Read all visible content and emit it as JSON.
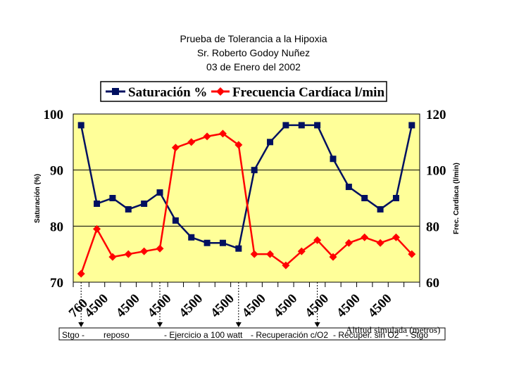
{
  "chart_data": {
    "type": "line",
    "title": [
      "Prueba de Tolerancia a la Hipoxia",
      "Sr. Roberto Godoy Nuñez",
      "03 de Enero del 2002"
    ],
    "xlabel": "Altitud simulada (metros)",
    "ylabel": "Saturación (%)",
    "y2label": "Frec. Cardíaca (l/min)",
    "ylim": [
      70,
      100
    ],
    "y2lim": [
      60,
      120
    ],
    "yticks": [
      "70",
      "80",
      "90",
      "100"
    ],
    "y2ticks": [
      "60",
      "80",
      "100",
      "120"
    ],
    "x_tick_labels": [
      "760",
      "4500",
      "4500",
      "4500",
      "4500",
      "4500",
      "4500",
      "4500",
      "4500",
      "4500",
      "4500"
    ],
    "grid": true,
    "legend_position": "top",
    "series": [
      {
        "name": "Saturación %",
        "axis": "left",
        "color": "#001060",
        "marker": "square",
        "values": [
          98,
          84,
          85,
          83,
          84,
          86,
          81,
          78,
          77,
          77,
          76,
          90,
          95,
          98,
          98,
          98,
          92,
          87,
          85,
          83,
          85,
          98
        ]
      },
      {
        "name": "Frecuencia Cardíaca l/min",
        "axis": "right",
        "color": "#ff0000",
        "marker": "diamond",
        "values": [
          63,
          79,
          69,
          70,
          71,
          72,
          108,
          110,
          112,
          113,
          109,
          70,
          70,
          66,
          71,
          75,
          69,
          74,
          76,
          74,
          76,
          70
        ]
      }
    ],
    "phases": [
      "Stgo -",
      "reposo",
      "- Ejercicio a 100 watt",
      "- Recuperación c/O2",
      "- Recuper. sin O2",
      "- Stgo"
    ],
    "colors": {
      "plot_background": "#ffff99",
      "saturation": "#001060",
      "heart_rate": "#ff0000"
    }
  }
}
